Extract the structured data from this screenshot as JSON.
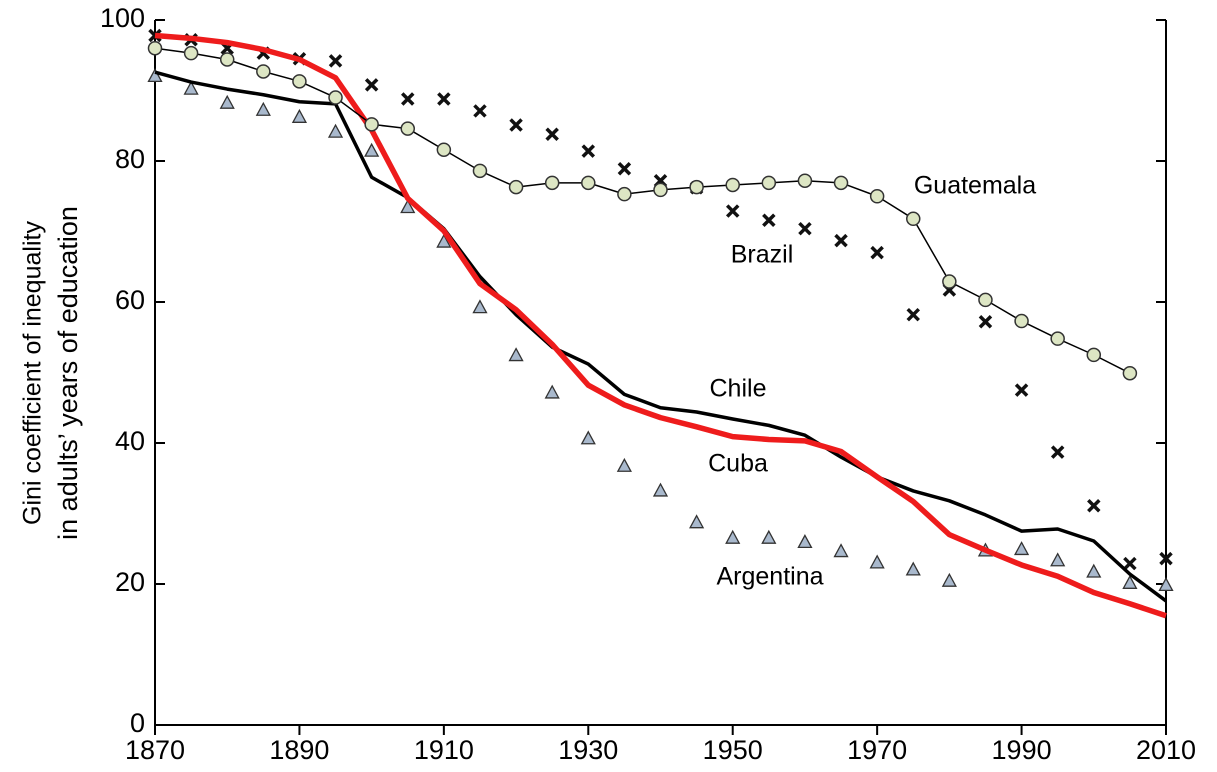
{
  "chart_data": {
    "type": "line",
    "ylabel": [
      "Gini coefficient of inequality",
      "in adults’ years of education"
    ],
    "x": [
      1870,
      1875,
      1880,
      1885,
      1890,
      1895,
      1900,
      1905,
      1910,
      1915,
      1920,
      1925,
      1930,
      1935,
      1940,
      1945,
      1950,
      1955,
      1960,
      1965,
      1970,
      1975,
      1980,
      1985,
      1990,
      1995,
      2000,
      2005,
      2010
    ],
    "xlim": [
      1870,
      2010
    ],
    "xticks": [
      1870,
      1890,
      1910,
      1930,
      1950,
      1970,
      1990,
      2010
    ],
    "ylim": [
      0,
      100
    ],
    "yticks": [
      0,
      20,
      40,
      60,
      80,
      100
    ],
    "series": [
      {
        "name": "Argentina",
        "color": "#a9b9cd",
        "marker": "triangle",
        "line": false,
        "values": [
          92,
          90.2,
          88.2,
          87.2,
          86.2,
          84.1,
          81.4,
          73.4,
          68.5,
          59.2,
          52.4,
          47.1,
          40.6,
          36.7,
          33.2,
          28.7,
          26.5,
          26.5,
          25.9,
          24.6,
          23,
          22,
          20.4,
          24.7,
          24.9,
          23.3,
          21.7,
          20.1,
          19.8
        ]
      },
      {
        "name": "Brazil",
        "color": "#111111",
        "marker": "x",
        "line": false,
        "values": [
          97.8,
          97.2,
          96,
          95.3,
          94.5,
          94.2,
          90.8,
          88.8,
          88.8,
          87.1,
          85.1,
          83.8,
          81.4,
          78.9,
          77.2,
          76.2,
          72.9,
          71.6,
          70.4,
          68.7,
          67,
          58.2,
          61.7,
          57.2,
          47.5,
          38.7,
          31.1,
          22.9,
          23.6
        ]
      },
      {
        "name": "Chile",
        "color": "#000000",
        "marker": "none",
        "line": true,
        "values": [
          92.6,
          91.2,
          90.2,
          89.4,
          88.4,
          88.1,
          77.7,
          74.8,
          70.4,
          63.6,
          58.2,
          53.6,
          51.2,
          46.9,
          45,
          44.4,
          43.4,
          42.5,
          41.1,
          38,
          35.2,
          33.2,
          31.8,
          29.8,
          27.5,
          27.8,
          26.1,
          21.4,
          17.6
        ]
      },
      {
        "name": "Cuba",
        "color": "#ee1c1c",
        "marker": "none",
        "line": true,
        "values": [
          97.8,
          97.4,
          96.8,
          95.8,
          94.4,
          91.8,
          84.4,
          74.7,
          70.1,
          62.6,
          58.9,
          54,
          48.2,
          45.4,
          43.6,
          42.3,
          40.9,
          40.5,
          40.3,
          38.8,
          35.2,
          31.7,
          27,
          24.8,
          22.7,
          21.1,
          18.8,
          17.2,
          15.5
        ]
      },
      {
        "name": "Guatemala",
        "color": "#dde6c4",
        "marker": "circle",
        "line": true,
        "values": [
          96,
          95.3,
          94.4,
          92.7,
          91.3,
          89,
          85.2,
          84.6,
          81.6,
          78.6,
          76.3,
          76.9,
          76.9,
          75.3,
          75.9,
          76.3,
          76.6,
          76.9,
          77.2,
          76.9,
          75,
          71.8,
          62.9,
          60.3,
          57.3,
          54.8,
          52.5,
          49.9,
          null
        ]
      }
    ]
  }
}
